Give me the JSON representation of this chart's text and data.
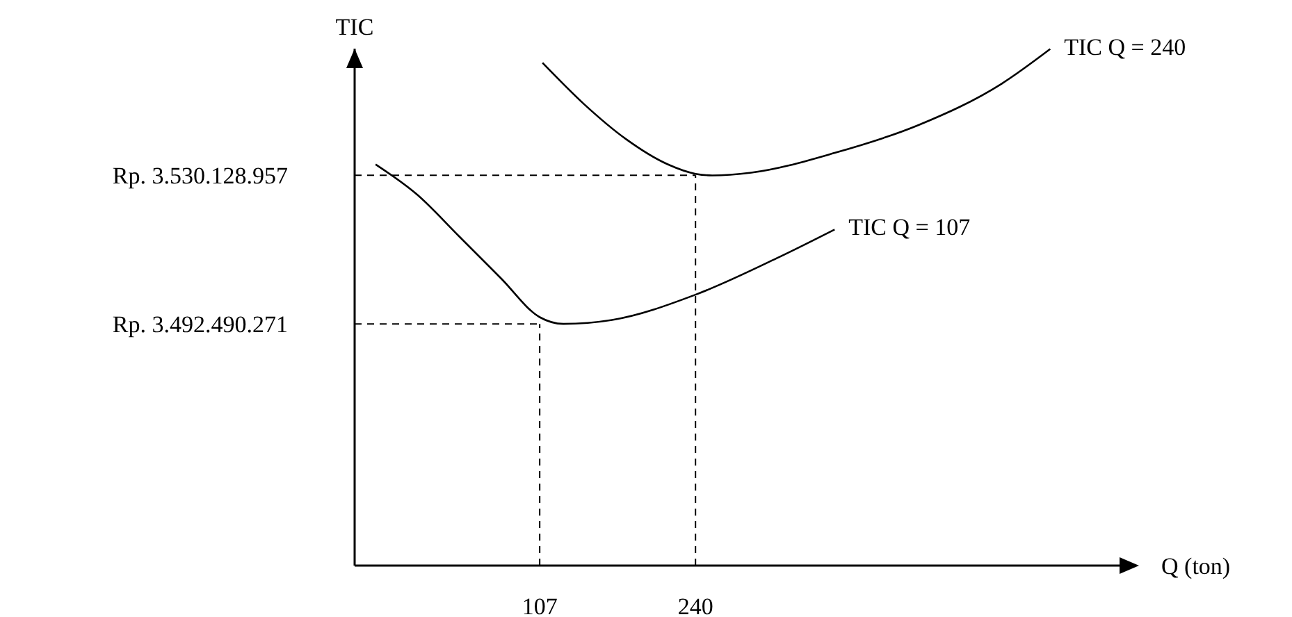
{
  "chart_data": {
    "type": "line",
    "xlabel": "Q (ton)",
    "ylabel": "TIC",
    "xlim": [
      -51,
      602
    ],
    "ylim": [
      3431300000,
      3562200000
    ],
    "xticks": [
      107,
      240
    ],
    "yticks": [
      {
        "value": 3492490271,
        "label": "Rp. 3.492.490.271"
      },
      {
        "value": 3530128957,
        "label": "Rp. 3.530.128.957"
      }
    ],
    "grid": false,
    "marker": "none",
    "line_style": "solid",
    "series": [
      {
        "name": "TIC Q = 240",
        "color": "#000000",
        "x": [
          109.4,
          145,
          180.6,
          216.3,
          240,
          254.3,
          287.5,
          358.8,
          430,
          501.3,
          542.8
        ],
        "values": [
          3558600000,
          3548100000,
          3539300000,
          3532900000,
          3530500000,
          3530100000,
          3530800000,
          3535800000,
          3542800000,
          3553300000,
          3562100000
        ]
      },
      {
        "name": "TIC Q = 107",
        "color": "#000000",
        "x": [
          -33.1,
          2.5,
          38.1,
          73.75,
          107,
          127.2,
          168.75,
          240,
          311.25,
          358.75
        ],
        "values": [
          3532900000,
          3525200000,
          3514700000,
          3504100000,
          3494200000,
          3492500000,
          3493500000,
          3499900000,
          3509400000,
          3516400000
        ]
      }
    ],
    "ref_lines": [
      {
        "axis": "y",
        "value": 3530128957,
        "color": "#000000",
        "line_style": "dashed"
      },
      {
        "axis": "x",
        "value": 240,
        "color": "#000000",
        "line_style": "dashed"
      },
      {
        "axis": "y",
        "value": 3492490271,
        "color": "#000000",
        "line_style": "dashed"
      },
      {
        "axis": "x",
        "value": 107,
        "color": "#000000",
        "line_style": "dashed"
      }
    ]
  }
}
